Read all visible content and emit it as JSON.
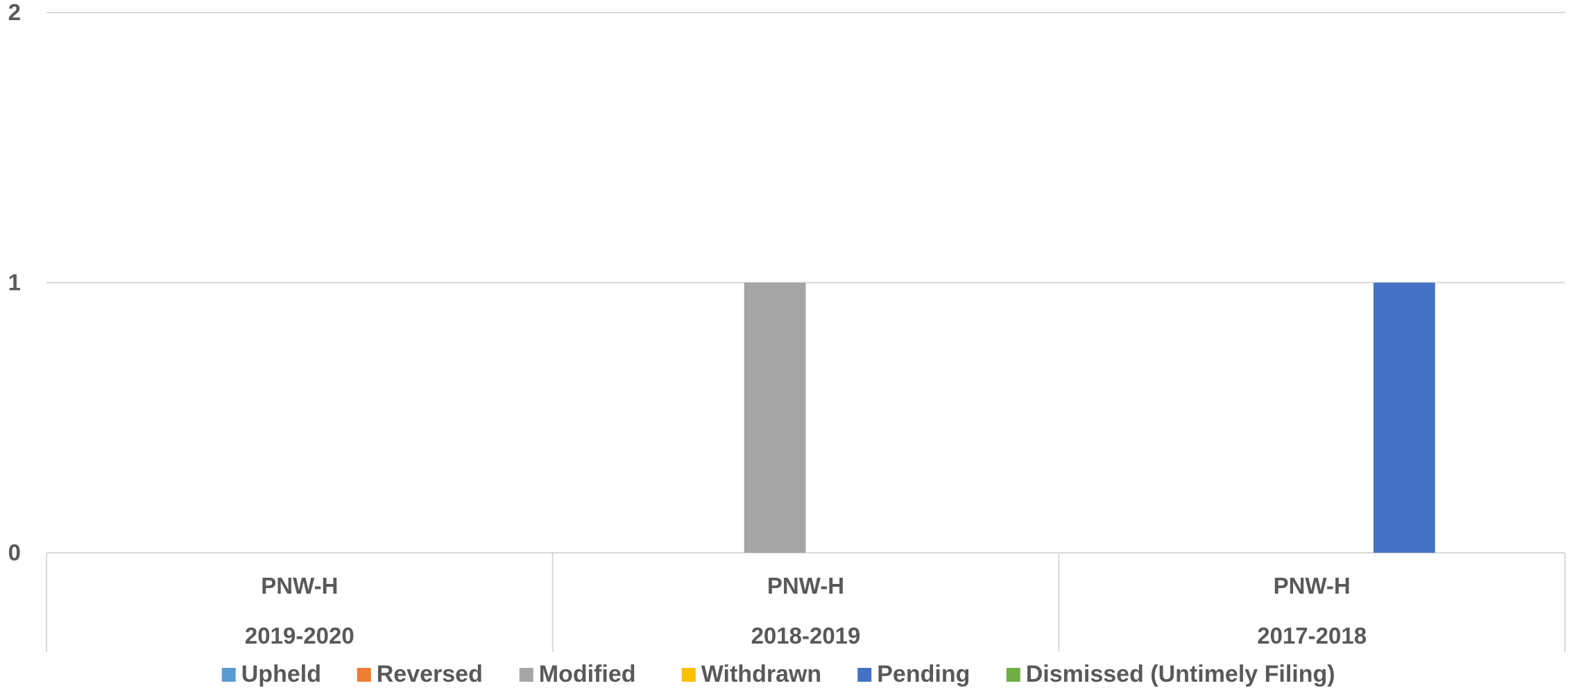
{
  "chart_data": {
    "type": "bar",
    "title": "",
    "xlabel": "",
    "ylabel": "",
    "ylim": [
      0,
      2
    ],
    "y_ticks": [
      0,
      1,
      2
    ],
    "grid": true,
    "legend_position": "bottom",
    "categories": [
      {
        "level1": "PNW-H",
        "level2": "2019-2020"
      },
      {
        "level1": "PNW-H",
        "level2": "2018-2019"
      },
      {
        "level1": "PNW-H",
        "level2": "2017-2018"
      }
    ],
    "series": [
      {
        "name": "Upheld",
        "color": "#5B9BD5",
        "values": [
          0,
          0,
          0
        ]
      },
      {
        "name": "Reversed",
        "color": "#ED7D31",
        "values": [
          0,
          0,
          0
        ]
      },
      {
        "name": "Modified",
        "color": "#A5A5A5",
        "values": [
          0,
          1,
          0
        ]
      },
      {
        "name": "Withdrawn",
        "color": "#FFC000",
        "values": [
          0,
          0,
          0
        ]
      },
      {
        "name": "Pending",
        "color": "#4472C4",
        "values": [
          0,
          0,
          1
        ]
      },
      {
        "name": "Dismissed (Untimely Filing)",
        "color": "#70AD47",
        "values": [
          0,
          0,
          0
        ]
      }
    ]
  }
}
